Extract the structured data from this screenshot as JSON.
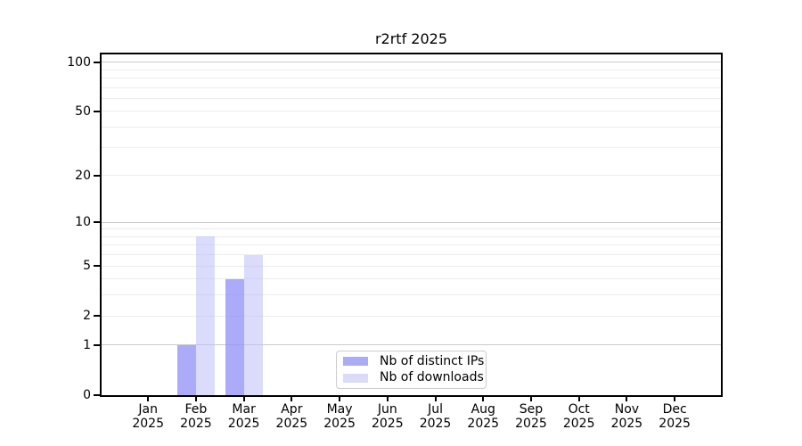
{
  "chart_data": {
    "type": "bar",
    "title": "r2rtf 2025",
    "categories": [
      "Jan",
      "Feb",
      "Mar",
      "Apr",
      "May",
      "Jun",
      "Jul",
      "Aug",
      "Sep",
      "Oct",
      "Nov",
      "Dec"
    ],
    "category_year": "2025",
    "series": [
      {
        "name": "Nb of distinct IPs",
        "color": "#ababf8",
        "fill": "rgba(150,150,248,0.8)",
        "values": [
          0,
          1,
          4,
          0,
          0,
          0,
          0,
          0,
          0,
          0,
          0,
          0
        ]
      },
      {
        "name": "Nb of downloads",
        "color": "#dbdbf8",
        "fill": "rgba(190,190,248,0.55)",
        "values": [
          0,
          8,
          6,
          0,
          0,
          0,
          0,
          0,
          0,
          0,
          0,
          0
        ]
      }
    ],
    "yscale": "log10(1+x)",
    "ylim": [
      0,
      110
    ],
    "yticks": [
      0,
      1,
      2,
      5,
      10,
      20,
      50,
      100
    ],
    "minor_gridlines": [
      2,
      3,
      4,
      5,
      6,
      7,
      8,
      9,
      20,
      30,
      40,
      50,
      60,
      70,
      80,
      90
    ],
    "major_gridlines": [
      1,
      10,
      100
    ],
    "grid": "horizontal",
    "legend_position": "lower center"
  },
  "colors": {
    "background": "#ffffff",
    "axis": "#000000",
    "grid_minor": "#ececec",
    "grid_major": "#c9c9c9",
    "legend_border": "#cccccc",
    "text": "#000000"
  }
}
